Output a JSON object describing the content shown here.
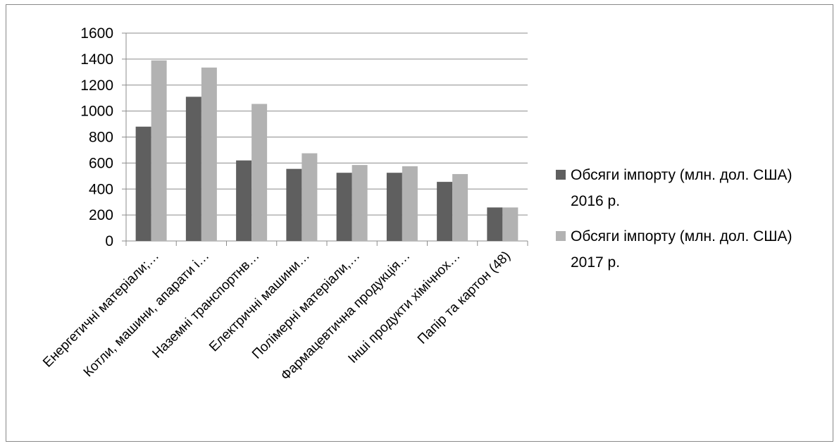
{
  "chart_data": {
    "type": "bar",
    "title": "",
    "xlabel": "",
    "ylabel": "",
    "ylim": [
      0,
      1600
    ],
    "yticks": [
      0,
      200,
      400,
      600,
      800,
      1000,
      1200,
      1400,
      1600
    ],
    "grid": true,
    "legend_position": "right",
    "categories": [
      "Енергетичні матеріали;…",
      "Котли, машини, апарати і…",
      "Наземні транспортнв…",
      "Електричні машини…",
      "Полімерні матеріали,…",
      "Фармацевтична продукція…",
      "Інші продукти хімічнох…",
      "Папір та картон (48)"
    ],
    "series": [
      {
        "legend_line1": "Обсяги імпорту (млн. дол. США)",
        "legend_line2": "2016 р.",
        "color": "#5f5f5f",
        "values": [
          880,
          1110,
          620,
          555,
          525,
          525,
          455,
          258
        ]
      },
      {
        "legend_line1": "Обсяги імпорту (млн. дол. США)",
        "legend_line2": "2017 р.",
        "color": "#b2b2b2",
        "values": [
          1390,
          1335,
          1055,
          675,
          585,
          575,
          515,
          258
        ]
      }
    ]
  }
}
